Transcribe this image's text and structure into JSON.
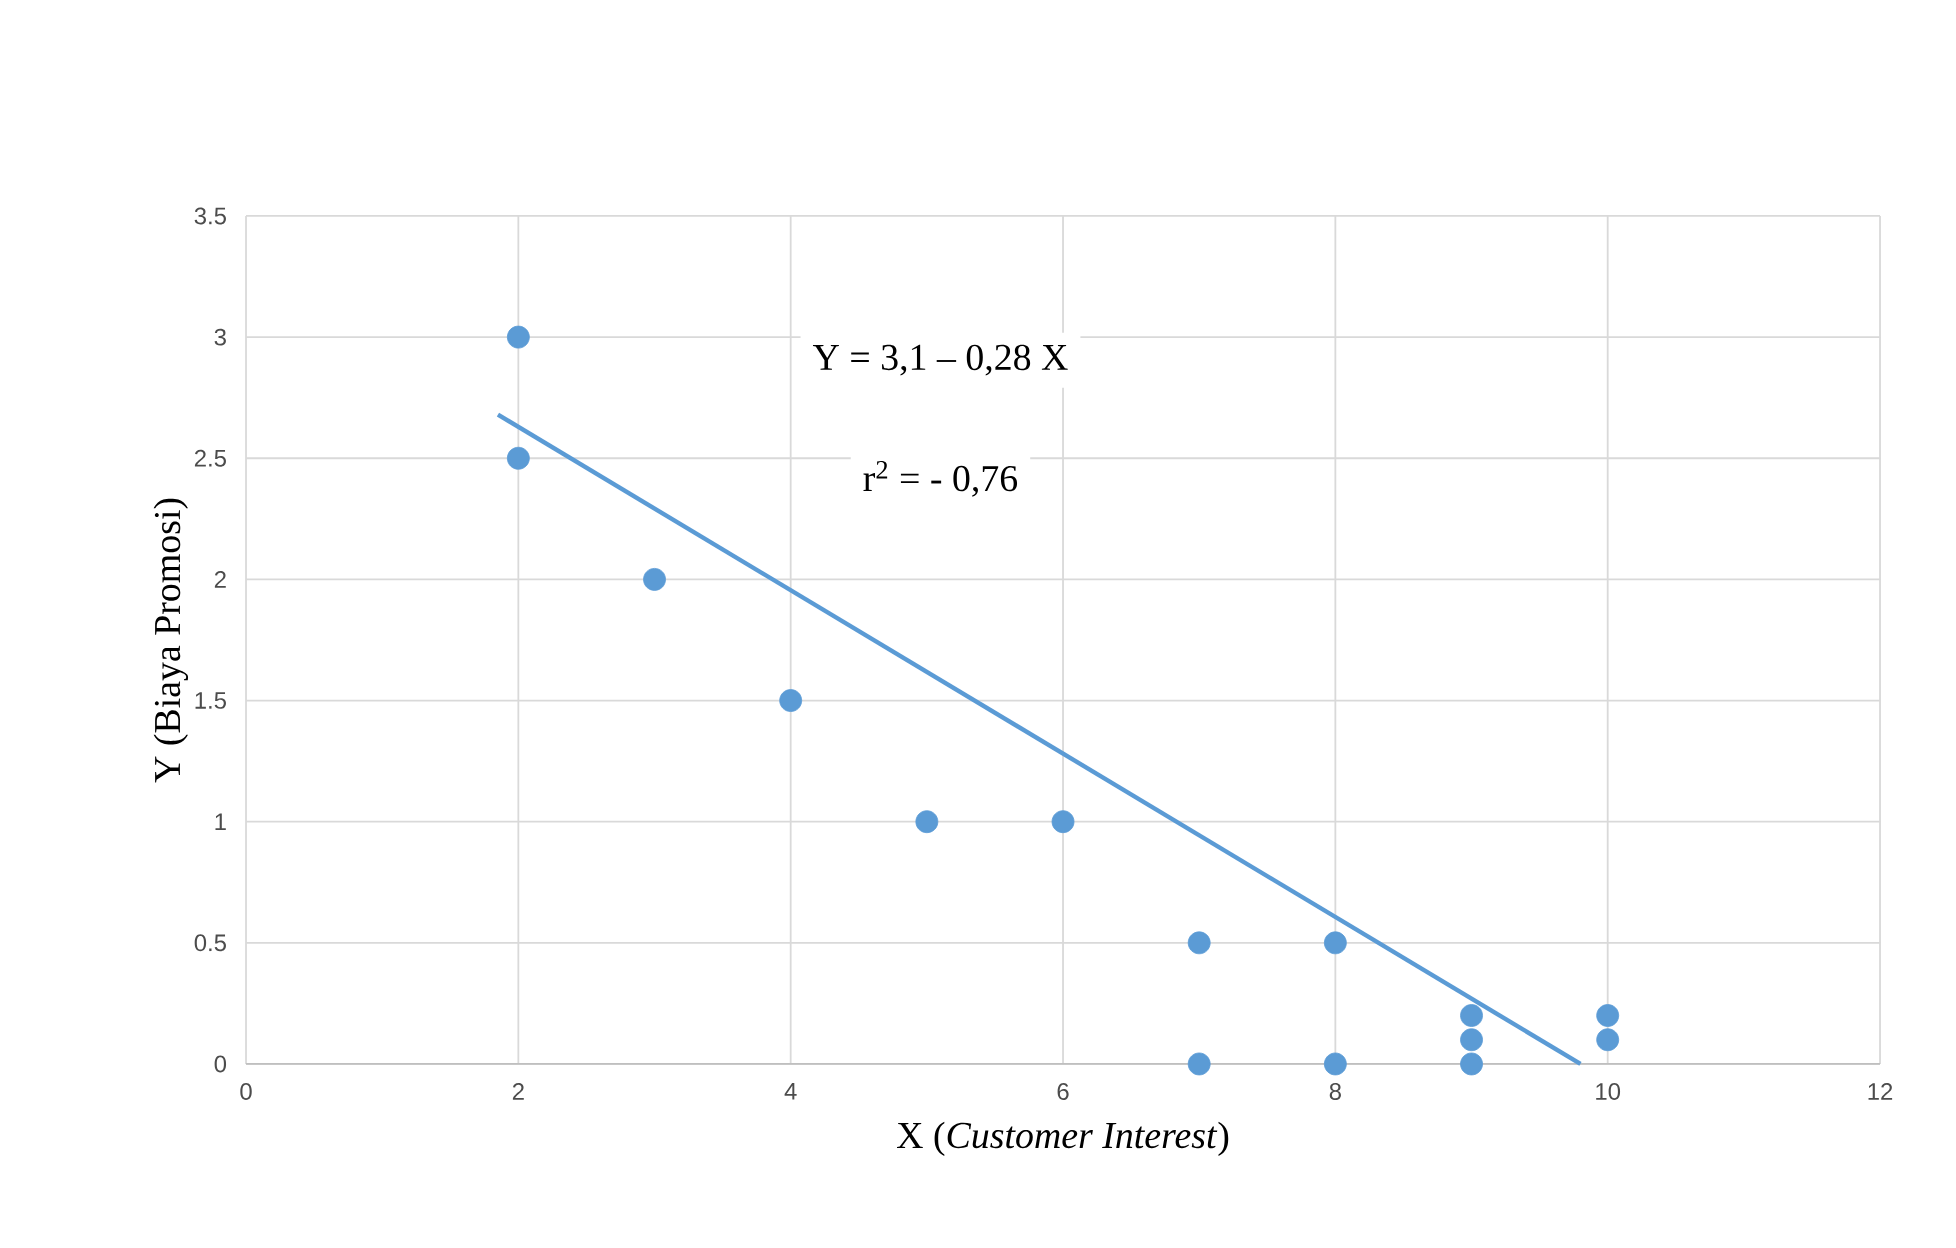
{
  "chart_data": {
    "type": "scatter",
    "xlabel": "X (*Customer Interest*)",
    "ylabel": "Y (Biaya Promosi)",
    "annotations": [
      "Y =  3,1 – 0,28 X",
      "r$^{2}$ = - 0,76"
    ],
    "xlim": [
      0,
      12
    ],
    "xticks": [
      0,
      2,
      4,
      6,
      8,
      10,
      12
    ],
    "ylim": [
      0,
      3.5
    ],
    "yticks": [
      0,
      0.5,
      1,
      1.5,
      2,
      2.5,
      3,
      3.5
    ],
    "grid": true,
    "series": [
      {
        "marker": "circle",
        "color": "#5b9bd5",
        "x": [
          2,
          2,
          3,
          4,
          5,
          6,
          7,
          7,
          8,
          8,
          9,
          9,
          9,
          10,
          10
        ],
        "values": [
          3,
          2.5,
          2,
          1.5,
          1,
          1,
          0.5,
          0,
          0.5,
          0,
          0.2,
          0.1,
          0,
          0.2,
          0.1
        ]
      },
      {
        "type": "line",
        "color": "#5b9bd5",
        "line_style": "solid",
        "marker": "none",
        "x": [
          1.85,
          9.8
        ],
        "values": [
          2.68,
          0
        ]
      }
    ]
  }
}
